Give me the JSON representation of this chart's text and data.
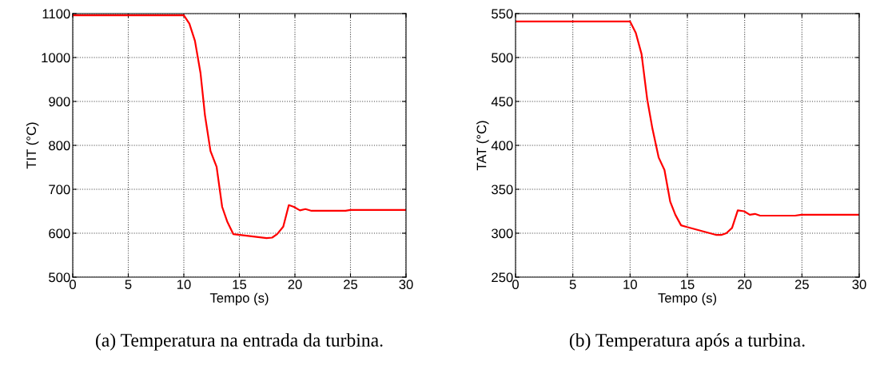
{
  "chart_data": [
    {
      "type": "line",
      "xlabel": "Tempo (s)",
      "ylabel": "TIT (°C)",
      "xlim": [
        0,
        30
      ],
      "ylim": [
        500,
        1100
      ],
      "xticks": [
        0,
        5,
        10,
        15,
        20,
        25,
        30
      ],
      "yticks": [
        500,
        600,
        700,
        800,
        900,
        1000,
        1100
      ],
      "grid": true,
      "marker": "none",
      "line_style": "solid",
      "annotations": [
        "(a) Temperatura na entrada da turbina."
      ],
      "series": [
        {
          "color": "#ff0000",
          "x": [
            0,
            10,
            10.5,
            11,
            11.5,
            11.9,
            12.4,
            12.95,
            13.45,
            13.9,
            14.45,
            17.45,
            17.95,
            18.4,
            18.95,
            19.45,
            19.9,
            20.45,
            20.95,
            21.5,
            24.55,
            25,
            30
          ],
          "values": [
            1096,
            1096,
            1077,
            1038,
            965,
            869,
            787,
            751,
            660,
            627,
            598,
            589,
            590,
            598,
            615,
            664,
            660,
            652,
            655,
            651,
            651,
            653,
            653
          ]
        }
      ]
    },
    {
      "type": "line",
      "xlabel": "Tempo (s)",
      "ylabel": "TAT (°C)",
      "xlim": [
        0,
        30
      ],
      "ylim": [
        250,
        550
      ],
      "xticks": [
        0,
        5,
        10,
        15,
        20,
        25,
        30
      ],
      "yticks": [
        250,
        300,
        350,
        400,
        450,
        500,
        550
      ],
      "grid": true,
      "marker": "none",
      "line_style": "solid",
      "annotations": [
        "(b) Temperatura após a turbina."
      ],
      "series": [
        {
          "color": "#ff0000",
          "x": [
            0,
            10,
            10.5,
            11,
            11.5,
            11.95,
            12.5,
            13,
            13.5,
            13.95,
            14.45,
            14.97,
            17.55,
            17.95,
            18.4,
            18.9,
            19.4,
            19.95,
            20.45,
            20.9,
            21.35,
            24.4,
            24.95,
            30
          ],
          "values": [
            541,
            541,
            528,
            504,
            452,
            419,
            386,
            372,
            336,
            321,
            309,
            307,
            298,
            298,
            300,
            306,
            326,
            325,
            321,
            322,
            320,
            320,
            321,
            321
          ]
        }
      ]
    }
  ]
}
